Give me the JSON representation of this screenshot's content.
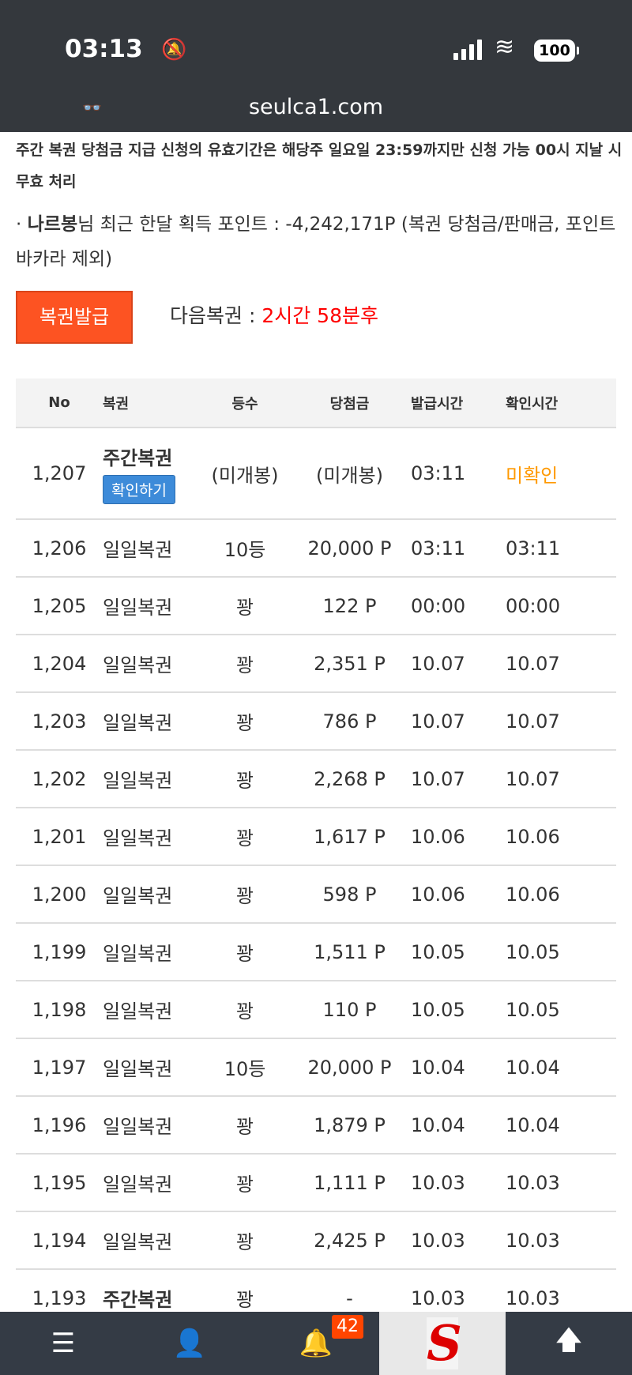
{
  "status_bar": {
    "time": "03:13",
    "battery": "100"
  },
  "browser": {
    "url": "seulca1.com"
  },
  "notice": "주간 복권 당첨금 지급 신청의 유효기간은 해당주 일요일 23:59까지만 신청 가능 00시 지날 시 무효 처리",
  "points": {
    "prefix": "· ",
    "user": "나르봉",
    "text": "님 최근 한달 획득 포인트 : -4,242,171P (복권 당첨금/판매금, 포인트 바카라 제외)"
  },
  "issue_button": "복권발급",
  "next": {
    "label": "다음복권 : ",
    "value": "2시간 58분후"
  },
  "table": {
    "headers": [
      "No",
      "복권",
      "등수",
      "당첨금",
      "발급시간",
      "확인시간"
    ],
    "first_row": {
      "no": "1,207",
      "type": "주간복권",
      "check_button": "확인하기",
      "rank": "(미개봉)",
      "prize": "(미개봉)",
      "issued": "03:11",
      "confirmed": "미확인"
    },
    "rows": [
      [
        "1,206",
        "일일복권",
        "10등",
        "20,000 P",
        "03:11",
        "03:11"
      ],
      [
        "1,205",
        "일일복권",
        "꽝",
        "122 P",
        "00:00",
        "00:00"
      ],
      [
        "1,204",
        "일일복권",
        "꽝",
        "2,351 P",
        "10.07",
        "10.07"
      ],
      [
        "1,203",
        "일일복권",
        "꽝",
        "786 P",
        "10.07",
        "10.07"
      ],
      [
        "1,202",
        "일일복권",
        "꽝",
        "2,268 P",
        "10.07",
        "10.07"
      ],
      [
        "1,201",
        "일일복권",
        "꽝",
        "1,617 P",
        "10.06",
        "10.06"
      ],
      [
        "1,200",
        "일일복권",
        "꽝",
        "598 P",
        "10.06",
        "10.06"
      ],
      [
        "1,199",
        "일일복권",
        "꽝",
        "1,511 P",
        "10.05",
        "10.05"
      ],
      [
        "1,198",
        "일일복권",
        "꽝",
        "110 P",
        "10.05",
        "10.05"
      ],
      [
        "1,197",
        "일일복권",
        "10등",
        "20,000 P",
        "10.04",
        "10.04"
      ],
      [
        "1,196",
        "일일복권",
        "꽝",
        "1,879 P",
        "10.04",
        "10.04"
      ],
      [
        "1,195",
        "일일복권",
        "꽝",
        "1,111 P",
        "10.03",
        "10.03"
      ],
      [
        "1,194",
        "일일복권",
        "꽝",
        "2,425 P",
        "10.03",
        "10.03"
      ],
      [
        "1,193",
        "주간복권",
        "꽝",
        "-",
        "10.03",
        "10.03"
      ]
    ]
  },
  "bottom_nav": {
    "notification_count": "42",
    "logo_text": "S"
  },
  "colors": {
    "accent": "#fd5322",
    "check_button": "#3d8bd9",
    "unconfirmed": "#ff9900",
    "countdown": "#ff0000",
    "bar": "#343b45"
  }
}
